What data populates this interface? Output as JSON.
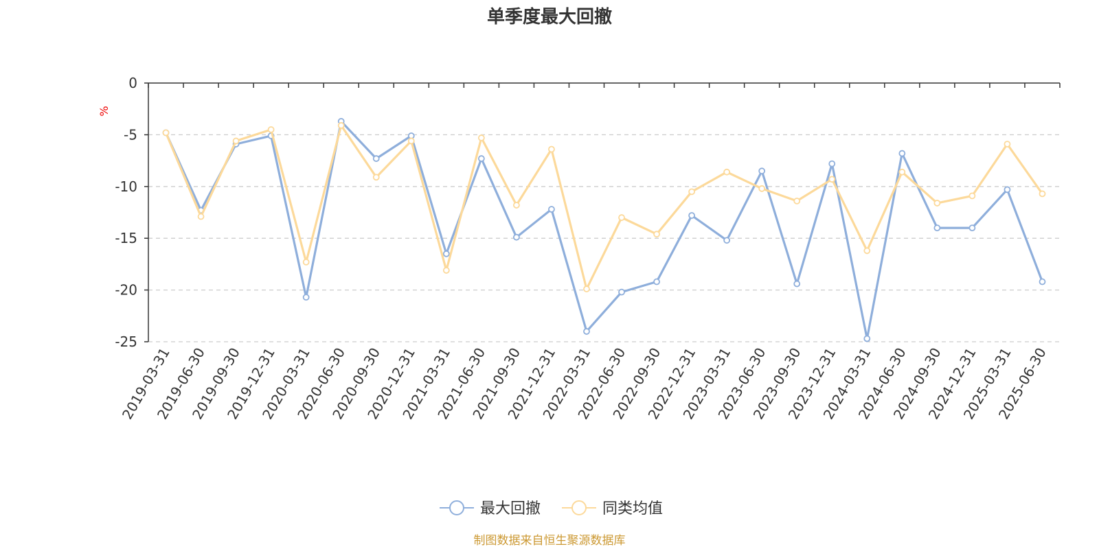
{
  "chart_data": {
    "type": "line",
    "title": "单季度最大回撤",
    "ylabel": "%",
    "ylim": [
      -25,
      0
    ],
    "yticks": [
      0,
      -5,
      -10,
      -15,
      -20,
      -25
    ],
    "grid": true,
    "legend_position": "bottom",
    "x": [
      "2019-03-31",
      "2019-06-30",
      "2019-09-30",
      "2019-12-31",
      "2020-03-31",
      "2020-06-30",
      "2020-09-30",
      "2020-12-31",
      "2021-03-31",
      "2021-06-30",
      "2021-09-30",
      "2021-12-31",
      "2022-03-31",
      "2022-06-30",
      "2022-09-30",
      "2022-12-31",
      "2023-03-31",
      "2023-06-30",
      "2023-09-30",
      "2023-12-31",
      "2024-03-31",
      "2024-06-30",
      "2024-09-30",
      "2024-12-31",
      "2025-03-31",
      "2025-06-30"
    ],
    "series": [
      {
        "name": "最大回撤",
        "color": "#8eaedb",
        "values": [
          -4.8,
          -12.3,
          -5.9,
          -5.1,
          -20.7,
          -3.7,
          -7.3,
          -5.1,
          -16.5,
          -7.3,
          -14.9,
          -12.2,
          -24.0,
          -20.2,
          -19.2,
          -12.8,
          -15.2,
          -8.5,
          -19.4,
          -7.8,
          -24.7,
          -6.8,
          -14.0,
          -14.0,
          -10.3,
          -19.2
        ]
      },
      {
        "name": "同类均值",
        "color": "#fcd99a",
        "values": [
          -4.8,
          -12.9,
          -5.6,
          -4.5,
          -17.3,
          -4.1,
          -9.1,
          -5.6,
          -18.1,
          -5.3,
          -11.8,
          -6.4,
          -19.9,
          -13.0,
          -14.6,
          -10.5,
          -8.6,
          -10.2,
          -11.4,
          -9.3,
          -16.2,
          -8.6,
          -11.6,
          -10.9,
          -5.9,
          -10.7
        ]
      }
    ]
  },
  "source_note": "制图数据来自恒生聚源数据库",
  "colors": {
    "axis": "#333333",
    "grid": "#cccccc",
    "unit": "#ee0000",
    "source": "#cc9933"
  }
}
